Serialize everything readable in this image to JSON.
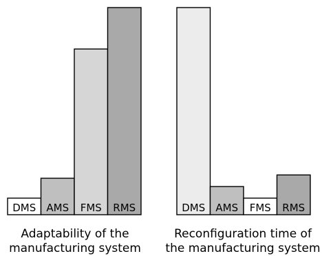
{
  "chart_data": [
    {
      "type": "bar",
      "categories": [
        "DMS",
        "AMS",
        "FMS",
        "RMS"
      ],
      "values": [
        1,
        2.2,
        10,
        12.5
      ],
      "colors": [
        "#ffffff",
        "#bfbfbf",
        "#d6d6d6",
        "#a9a9a9"
      ],
      "ylim": [
        0,
        12.5
      ],
      "axes_shown": false,
      "grid": false,
      "title": "",
      "xlabel": "",
      "ylabel": "",
      "caption": [
        "Adaptability of the",
        "manufacturing system"
      ]
    },
    {
      "type": "bar",
      "categories": [
        "DMS",
        "AMS",
        "FMS",
        "RMS"
      ],
      "values": [
        12.5,
        1.7,
        1,
        2.4
      ],
      "colors": [
        "#ececec",
        "#bfbfbf",
        "#ffffff",
        "#a9a9a9"
      ],
      "ylim": [
        0,
        12.5
      ],
      "axes_shown": false,
      "grid": false,
      "title": "",
      "xlabel": "",
      "ylabel": "",
      "caption": [
        "Reconfiguration time of",
        "the manufacturing system"
      ]
    }
  ]
}
